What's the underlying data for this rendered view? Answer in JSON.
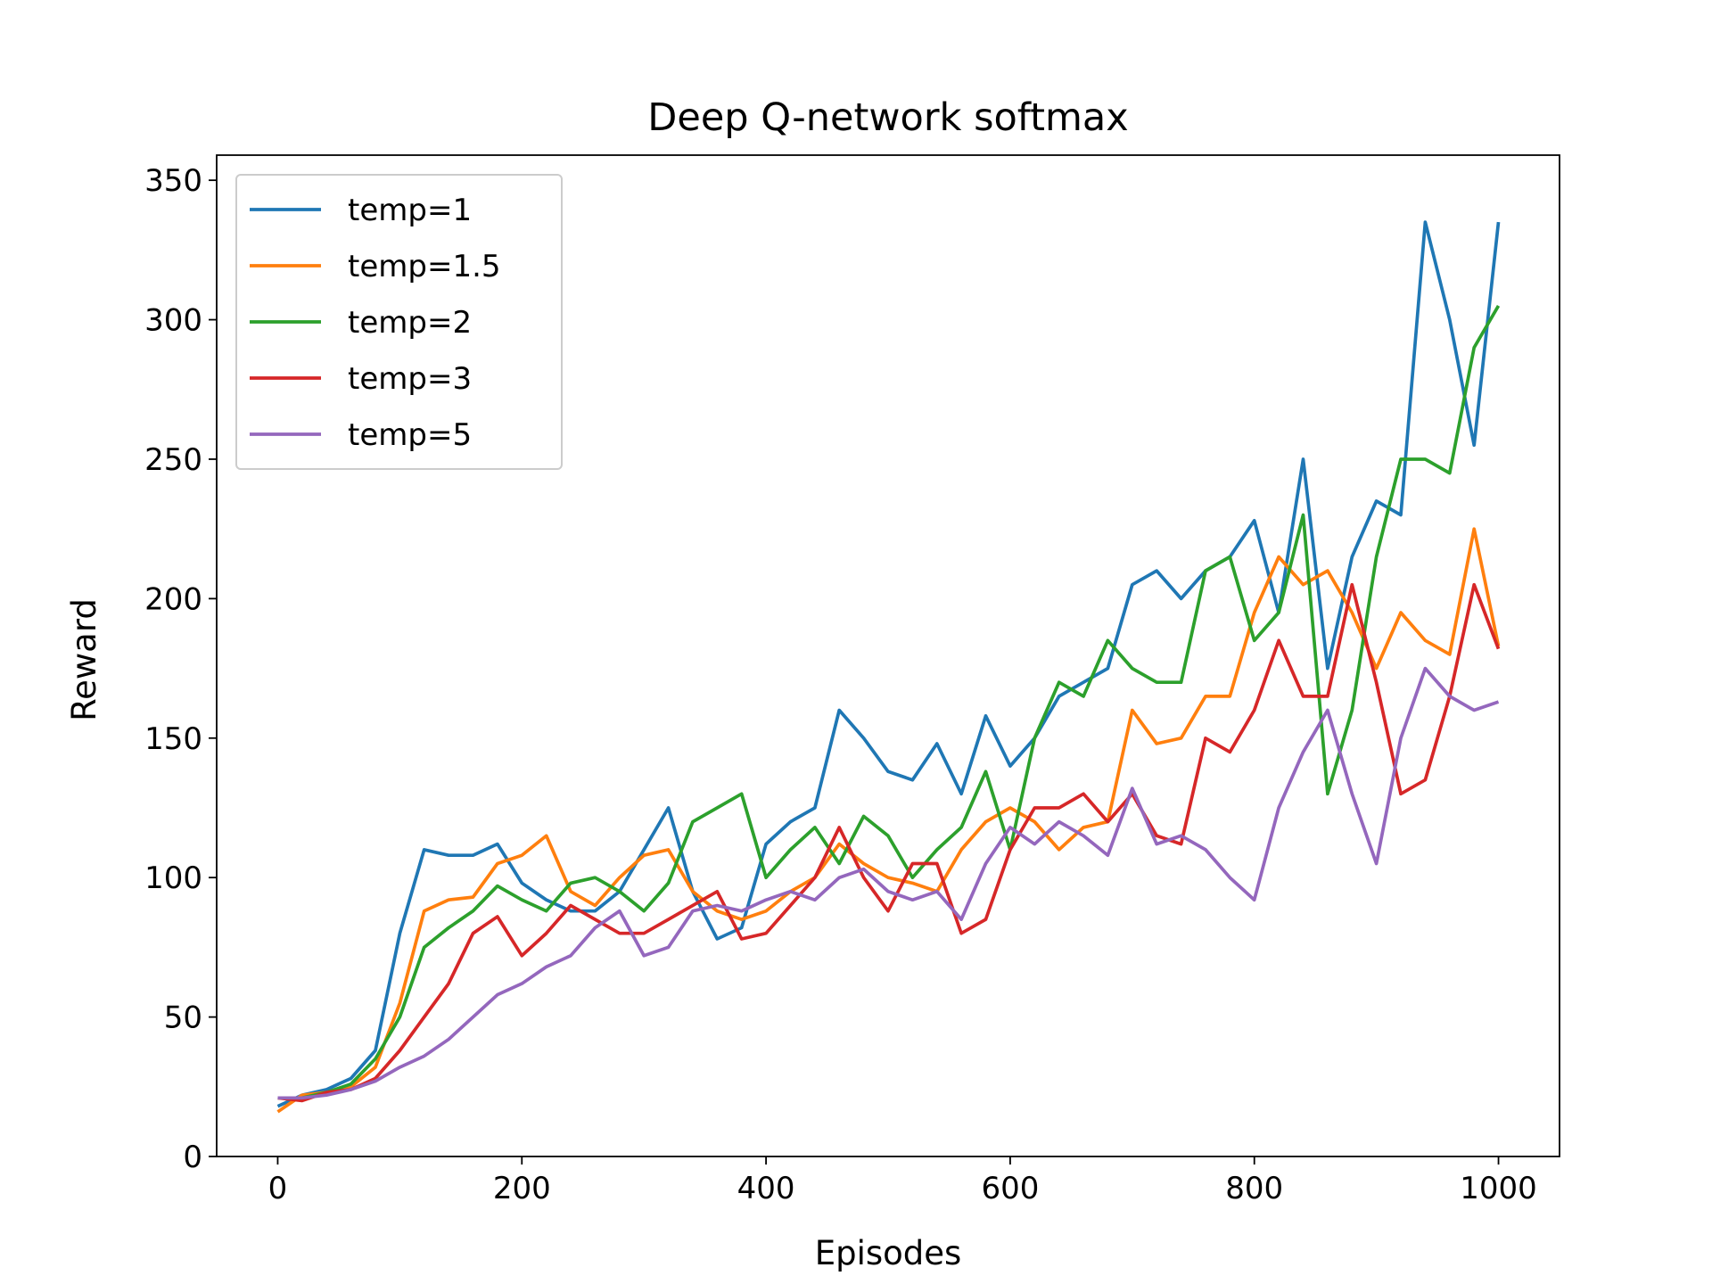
{
  "chart_data": {
    "type": "line",
    "title": "Deep Q-network softmax",
    "x_label": "Episodes",
    "y_label": "Reward",
    "x": [
      0,
      20,
      40,
      60,
      80,
      100,
      120,
      140,
      160,
      180,
      200,
      220,
      240,
      260,
      280,
      300,
      320,
      340,
      360,
      380,
      400,
      420,
      440,
      460,
      480,
      500,
      520,
      540,
      560,
      580,
      600,
      620,
      640,
      660,
      680,
      700,
      720,
      740,
      760,
      780,
      800,
      820,
      840,
      860,
      880,
      900,
      920,
      940,
      960,
      980,
      1000
    ],
    "series": [
      {
        "name": "temp=1",
        "color": "#1f77b4",
        "values": [
          18,
          22,
          24,
          28,
          38,
          80,
          110,
          108,
          108,
          112,
          98,
          92,
          88,
          88,
          95,
          110,
          125,
          95,
          78,
          82,
          112,
          120,
          125,
          160,
          150,
          138,
          135,
          148,
          130,
          158,
          140,
          150,
          165,
          170,
          175,
          205,
          210,
          200,
          210,
          215,
          228,
          195,
          250,
          175,
          215,
          235,
          230,
          335,
          300,
          255,
          335
        ]
      },
      {
        "name": "temp=1.5",
        "color": "#ff7f0e",
        "values": [
          16,
          22,
          23,
          25,
          32,
          55,
          88,
          92,
          93,
          105,
          108,
          115,
          95,
          90,
          100,
          108,
          110,
          95,
          88,
          85,
          88,
          95,
          100,
          112,
          105,
          100,
          98,
          95,
          110,
          120,
          125,
          120,
          110,
          118,
          120,
          160,
          148,
          150,
          165,
          165,
          195,
          215,
          205,
          210,
          195,
          175,
          195,
          185,
          180,
          225,
          183
        ]
      },
      {
        "name": "temp=2",
        "color": "#2ca02c",
        "values": [
          21,
          21,
          23,
          26,
          35,
          50,
          75,
          82,
          88,
          97,
          92,
          88,
          98,
          100,
          95,
          88,
          98,
          120,
          125,
          130,
          100,
          110,
          118,
          105,
          122,
          115,
          100,
          110,
          118,
          138,
          110,
          150,
          170,
          165,
          185,
          175,
          170,
          170,
          210,
          215,
          185,
          195,
          230,
          130,
          160,
          215,
          250,
          250,
          245,
          290,
          305
        ]
      },
      {
        "name": "temp=3",
        "color": "#d62728",
        "values": [
          21,
          20,
          23,
          24,
          28,
          38,
          50,
          62,
          80,
          86,
          72,
          80,
          90,
          85,
          80,
          80,
          85,
          90,
          95,
          78,
          80,
          90,
          100,
          118,
          100,
          88,
          105,
          105,
          80,
          85,
          110,
          125,
          125,
          130,
          120,
          130,
          115,
          112,
          150,
          145,
          160,
          185,
          165,
          165,
          205,
          170,
          130,
          135,
          165,
          205,
          182
        ]
      },
      {
        "name": "temp=5",
        "color": "#9467bd",
        "values": [
          21,
          21,
          22,
          24,
          27,
          32,
          36,
          42,
          50,
          58,
          62,
          68,
          72,
          82,
          88,
          72,
          75,
          88,
          90,
          88,
          92,
          95,
          92,
          100,
          103,
          95,
          92,
          95,
          85,
          105,
          118,
          112,
          120,
          115,
          108,
          132,
          112,
          115,
          110,
          100,
          92,
          125,
          145,
          160,
          130,
          105,
          150,
          175,
          165,
          160,
          163
        ]
      }
    ],
    "xlim": [
      -50,
      1050
    ],
    "ylim": [
      0,
      359
    ],
    "xticks": [
      0,
      200,
      400,
      600,
      800,
      1000
    ],
    "yticks": [
      0,
      50,
      100,
      150,
      200,
      250,
      300,
      350
    ],
    "legend": "upper left"
  }
}
